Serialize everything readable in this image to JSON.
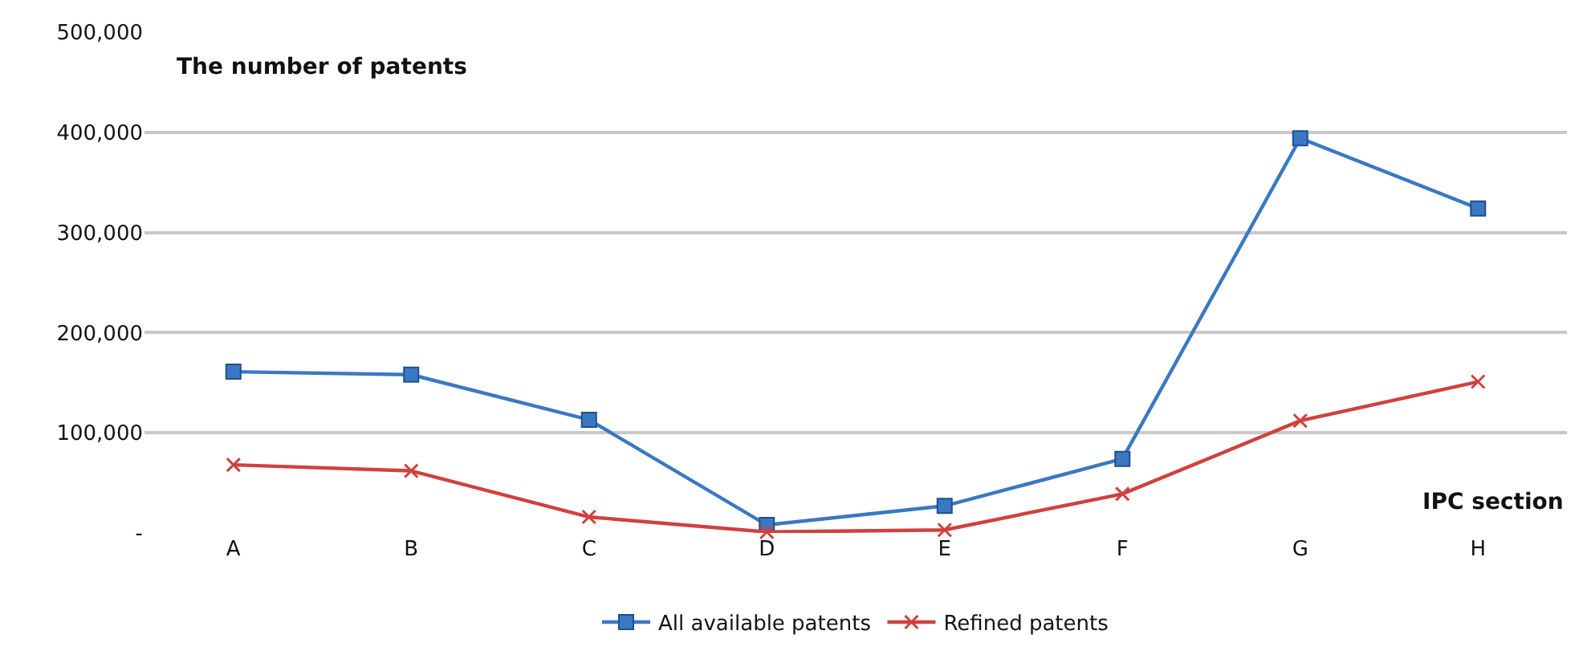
{
  "chart_data": {
    "type": "line",
    "ylabel": "The number of patents",
    "xlabel": "IPC section",
    "categories": [
      "A",
      "B",
      "C",
      "D",
      "E",
      "F",
      "G",
      "H"
    ],
    "series": [
      {
        "name": "All available patents",
        "color": "#3a78c3",
        "marker": "square",
        "values": [
          161000,
          158000,
          113000,
          8000,
          27000,
          74000,
          394000,
          324000
        ]
      },
      {
        "name": "Refined patents",
        "color": "#d0413e",
        "marker": "cross",
        "values": [
          68000,
          62000,
          16000,
          1000,
          3000,
          39000,
          112000,
          151000
        ]
      }
    ],
    "ylim": [
      0,
      500000
    ],
    "yticks": [
      {
        "value": 0,
        "label": "-"
      },
      {
        "value": 100000,
        "label": "100,000"
      },
      {
        "value": 200000,
        "label": "200,000"
      },
      {
        "value": 300000,
        "label": "300,000"
      },
      {
        "value": 400000,
        "label": "400,000"
      },
      {
        "value": 500000,
        "label": "500,000"
      }
    ],
    "grid": "y",
    "legend": "bottom",
    "line_style": "solid"
  }
}
